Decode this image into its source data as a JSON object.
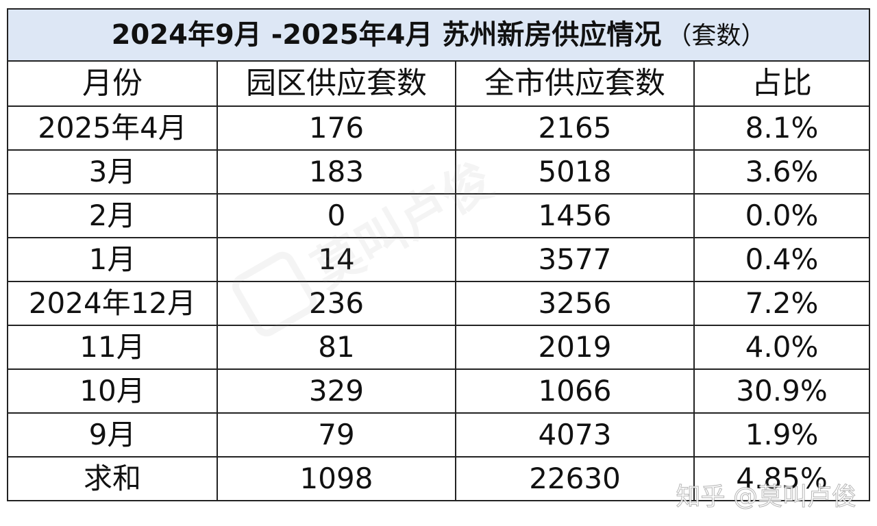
{
  "table": {
    "title": "2024年9月 -2025年4月 苏州新房供应情况",
    "title_unit": "（套数）",
    "headers": [
      "月份",
      "园区供应套数",
      "全市供应套数",
      "占比"
    ],
    "rows": [
      [
        "2025年4月",
        "176",
        "2165",
        "8.1%"
      ],
      [
        "3月",
        "183",
        "5018",
        "3.6%"
      ],
      [
        "2月",
        "0",
        "1456",
        "0.0%"
      ],
      [
        "1月",
        "14",
        "3577",
        "0.4%"
      ],
      [
        "2024年12月",
        "236",
        "3256",
        "7.2%"
      ],
      [
        "11月",
        "81",
        "2019",
        "4.0%"
      ],
      [
        "10月",
        "329",
        "1066",
        "30.9%"
      ],
      [
        "9月",
        "79",
        "4073",
        "1.9%"
      ],
      [
        "求和",
        "1098",
        "22630",
        "4.85%"
      ]
    ]
  },
  "watermark": {
    "center_text": "莫叫卢俊",
    "corner_text": "知乎 @莫叫卢俊"
  },
  "colors": {
    "title_bg": "#dde7f5",
    "border": "#222222",
    "text": "#111111"
  }
}
